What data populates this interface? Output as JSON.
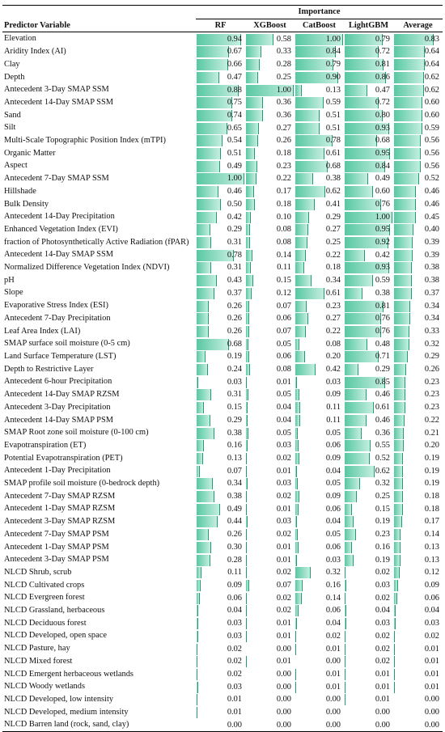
{
  "header": {
    "predictor_label": "Predictor Variable",
    "importance_label": "Importance",
    "columns": [
      "RF",
      "XGBoost",
      "CatBoost",
      "LightGBM",
      "Average"
    ]
  },
  "colors": {
    "bar_fill": "#58c8a2",
    "bar_edge": "#1f9c74"
  },
  "rows": [
    {
      "name": "Elevation",
      "values": [
        "0.94",
        "0.58",
        "1.00",
        "0.79",
        "0.83"
      ]
    },
    {
      "name": "Aridity Index (AI)",
      "values": [
        "0.67",
        "0.33",
        "0.84",
        "0.72",
        "0.64"
      ]
    },
    {
      "name": "Clay",
      "values": [
        "0.66",
        "0.28",
        "0.79",
        "0.81",
        "0.64"
      ]
    },
    {
      "name": "Depth",
      "values": [
        "0.47",
        "0.25",
        "0.90",
        "0.86",
        "0.62"
      ]
    },
    {
      "name": "Antecedent 3-Day SMAP SSM",
      "values": [
        "0.88",
        "1.00",
        "0.13",
        "0.47",
        "0.62"
      ]
    },
    {
      "name": "Antecedent 14-Day SMAP SSM",
      "values": [
        "0.75",
        "0.36",
        "0.59",
        "0.72",
        "0.60"
      ]
    },
    {
      "name": "Sand",
      "values": [
        "0.74",
        "0.36",
        "0.51",
        "0.80",
        "0.60"
      ]
    },
    {
      "name": "Silt",
      "values": [
        "0.65",
        "0.27",
        "0.51",
        "0.93",
        "0.59"
      ]
    },
    {
      "name": "Multi-Scale Topographic Position Index (mTPI)",
      "values": [
        "0.54",
        "0.26",
        "0.78",
        "0.68",
        "0.56"
      ]
    },
    {
      "name": "Organic Matter",
      "values": [
        "0.51",
        "0.18",
        "0.61",
        "0.95",
        "0.56"
      ]
    },
    {
      "name": "Aspect",
      "values": [
        "0.49",
        "0.23",
        "0.68",
        "0.84",
        "0.56"
      ]
    },
    {
      "name": "Antecedent 7-Day SMAP SSM",
      "values": [
        "1.00",
        "0.22",
        "0.38",
        "0.49",
        "0.52"
      ]
    },
    {
      "name": "Hillshade",
      "values": [
        "0.46",
        "0.17",
        "0.62",
        "0.60",
        "0.46"
      ]
    },
    {
      "name": "Bulk Density",
      "values": [
        "0.50",
        "0.18",
        "0.41",
        "0.76",
        "0.46"
      ]
    },
    {
      "name": "Antecedent 14-Day Precipitation",
      "values": [
        "0.42",
        "0.10",
        "0.29",
        "1.00",
        "0.45"
      ]
    },
    {
      "name": "Enhanced Vegetation Index (EVI)",
      "values": [
        "0.29",
        "0.08",
        "0.27",
        "0.95",
        "0.40"
      ]
    },
    {
      "name": "fraction of Photosynthetically Active Radiation (fPAR)",
      "values": [
        "0.31",
        "0.08",
        "0.25",
        "0.92",
        "0.39"
      ]
    },
    {
      "name": "Antecedent 14-Day SMAP SSM",
      "values": [
        "0.78",
        "0.14",
        "0.22",
        "0.42",
        "0.39"
      ]
    },
    {
      "name": "Normalized Difference Vegetation Index (NDVI)",
      "values": [
        "0.31",
        "0.11",
        "0.18",
        "0.93",
        "0.38"
      ]
    },
    {
      "name": "pH",
      "values": [
        "0.43",
        "0.15",
        "0.34",
        "0.59",
        "0.38"
      ]
    },
    {
      "name": "Slope",
      "values": [
        "0.37",
        "0.12",
        "0.61",
        "0.38",
        "0.37"
      ]
    },
    {
      "name": "Evaporative Stress Index (ESI)",
      "values": [
        "0.26",
        "0.07",
        "0.23",
        "0.81",
        "0.34"
      ]
    },
    {
      "name": "Antecedent 7-Day Precipitation",
      "values": [
        "0.26",
        "0.06",
        "0.27",
        "0.76",
        "0.34"
      ]
    },
    {
      "name": "Leaf Area Index (LAI)",
      "values": [
        "0.26",
        "0.07",
        "0.22",
        "0.76",
        "0.33"
      ]
    },
    {
      "name": "SMAP surface soil moisture (0-5 cm)",
      "values": [
        "0.68",
        "0.05",
        "0.08",
        "0.48",
        "0.32"
      ]
    },
    {
      "name": "Land Surface Temperature (LST)",
      "values": [
        "0.19",
        "0.06",
        "0.20",
        "0.71",
        "0.29"
      ]
    },
    {
      "name": "Depth to Restrictive Layer",
      "values": [
        "0.24",
        "0.08",
        "0.42",
        "0.29",
        "0.26"
      ]
    },
    {
      "name": "Antecedent 6-hour Precipitation",
      "values": [
        "0.03",
        "0.01",
        "0.03",
        "0.85",
        "0.23"
      ]
    },
    {
      "name": "Antecedent 14-Day SMAP RZSM",
      "values": [
        "0.31",
        "0.05",
        "0.09",
        "0.46",
        "0.23"
      ]
    },
    {
      "name": "Antecedent 3-Day Precipitation",
      "values": [
        "0.15",
        "0.04",
        "0.11",
        "0.61",
        "0.23"
      ]
    },
    {
      "name": "Antecedent 14-Day SMAP PSM",
      "values": [
        "0.29",
        "0.04",
        "0.11",
        "0.46",
        "0.22"
      ]
    },
    {
      "name": "SMAP Root zone soil moisture (0-100 cm)",
      "values": [
        "0.38",
        "0.05",
        "0.05",
        "0.36",
        "0.21"
      ]
    },
    {
      "name": "Evapotranspiration (ET)",
      "values": [
        "0.16",
        "0.03",
        "0.06",
        "0.55",
        "0.20"
      ]
    },
    {
      "name": "Potential Evapotranspiration (PET)",
      "values": [
        "0.13",
        "0.02",
        "0.09",
        "0.52",
        "0.19"
      ]
    },
    {
      "name": "Antecedent 1-Day Precipitation",
      "values": [
        "0.07",
        "0.01",
        "0.04",
        "0.62",
        "0.19"
      ]
    },
    {
      "name": "SMAP profile soil moisture (0-bedrock depth)",
      "values": [
        "0.34",
        "0.03",
        "0.05",
        "0.32",
        "0.19"
      ]
    },
    {
      "name": "Antecedent 7-Day SMAP RZSM",
      "values": [
        "0.38",
        "0.02",
        "0.09",
        "0.25",
        "0.18"
      ]
    },
    {
      "name": "Antecedent 1-Day SMAP RZSM",
      "values": [
        "0.49",
        "0.01",
        "0.06",
        "0.15",
        "0.18"
      ]
    },
    {
      "name": "Antecedent 3-Day SMAP RZSM",
      "values": [
        "0.44",
        "0.03",
        "0.04",
        "0.19",
        "0.17"
      ]
    },
    {
      "name": "Antecedent 7-Day SMAP PSM",
      "values": [
        "0.26",
        "0.02",
        "0.05",
        "0.23",
        "0.14"
      ]
    },
    {
      "name": "Antecedent 1-Day SMAP PSM",
      "values": [
        "0.30",
        "0.01",
        "0.06",
        "0.16",
        "0.13"
      ]
    },
    {
      "name": "Antecedent 3-Day SMAP PSM",
      "values": [
        "0.28",
        "0.01",
        "0.03",
        "0.19",
        "0.13"
      ]
    },
    {
      "name": "NLCD Shrub, scrub",
      "values": [
        "0.11",
        "0.02",
        "0.32",
        "0.02",
        "0.12"
      ]
    },
    {
      "name": "NLCD Cultivated crops",
      "values": [
        "0.09",
        "0.07",
        "0.16",
        "0.03",
        "0.09"
      ]
    },
    {
      "name": "NLCD Evergreen forest",
      "values": [
        "0.06",
        "0.02",
        "0.14",
        "0.02",
        "0.06"
      ]
    },
    {
      "name": "NLCD Grassland, herbaceous",
      "values": [
        "0.04",
        "0.02",
        "0.06",
        "0.04",
        "0.04"
      ]
    },
    {
      "name": "NLCD Deciduous forest",
      "values": [
        "0.03",
        "0.01",
        "0.04",
        "0.03",
        "0.03"
      ]
    },
    {
      "name": "NLCD Developed, open space",
      "values": [
        "0.03",
        "0.01",
        "0.02",
        "0.02",
        "0.02"
      ]
    },
    {
      "name": "NLCD Pasture, hay",
      "values": [
        "0.02",
        "0.00",
        "0.01",
        "0.02",
        "0.01"
      ]
    },
    {
      "name": "NLCD Mixed forest",
      "values": [
        "0.02",
        "0.01",
        "0.00",
        "0.02",
        "0.01"
      ]
    },
    {
      "name": "NLCD Emergent herbaceous wetlands",
      "values": [
        "0.02",
        "0.00",
        "0.01",
        "0.01",
        "0.01"
      ]
    },
    {
      "name": "NLCD Woody wetlands",
      "values": [
        "0.03",
        "0.00",
        "0.01",
        "0.01",
        "0.01"
      ]
    },
    {
      "name": "NLCD Developed, low intensity",
      "values": [
        "0.01",
        "0.00",
        "0.00",
        "0.01",
        "0.00"
      ]
    },
    {
      "name": "NLCD Developed, medium intensity",
      "values": [
        "0.01",
        "0.00",
        "0.00",
        "0.00",
        "0.00"
      ]
    },
    {
      "name": "NLCD Barren land (rock, sand, clay)",
      "values": [
        "0.00",
        "0.00",
        "0.00",
        "0.00",
        "0.00"
      ]
    }
  ]
}
